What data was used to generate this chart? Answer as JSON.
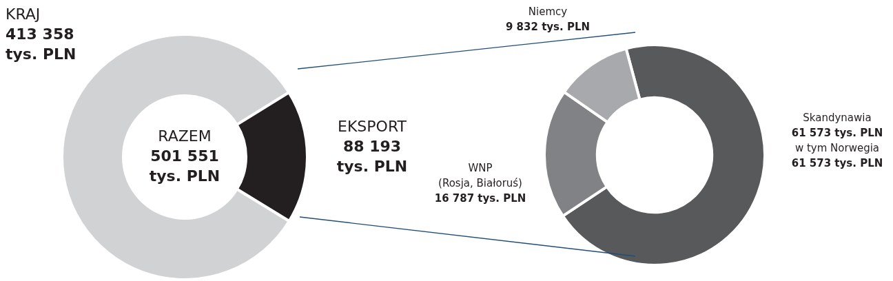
{
  "chart_data": [
    {
      "type": "donut",
      "categories": [
        "KRAJ",
        "EKSPORT"
      ],
      "values": [
        413358,
        88193
      ],
      "colors": [
        "#d1d2d4",
        "#231f20"
      ],
      "value_labels": [
        "413 358 tys. PLN",
        "88 193 tys. PLN"
      ],
      "annotations": [
        "RAZEM",
        "501 551 tys. PLN"
      ]
    },
    {
      "type": "donut",
      "categories": [
        "Skandynawia",
        "WNP (Rosja, Białoruś)",
        "Niemcy"
      ],
      "values": [
        61573,
        16787,
        9832
      ],
      "colors": [
        "#58595b",
        "#808285",
        "#a7a9ac"
      ],
      "value_labels": [
        "61 573 tys. PLN",
        "16 787 tys. PLN",
        "9 832 tys. PLN"
      ],
      "annotations": [
        "w tym Norwegia 61 573 tys. PLN"
      ]
    }
  ]
}
